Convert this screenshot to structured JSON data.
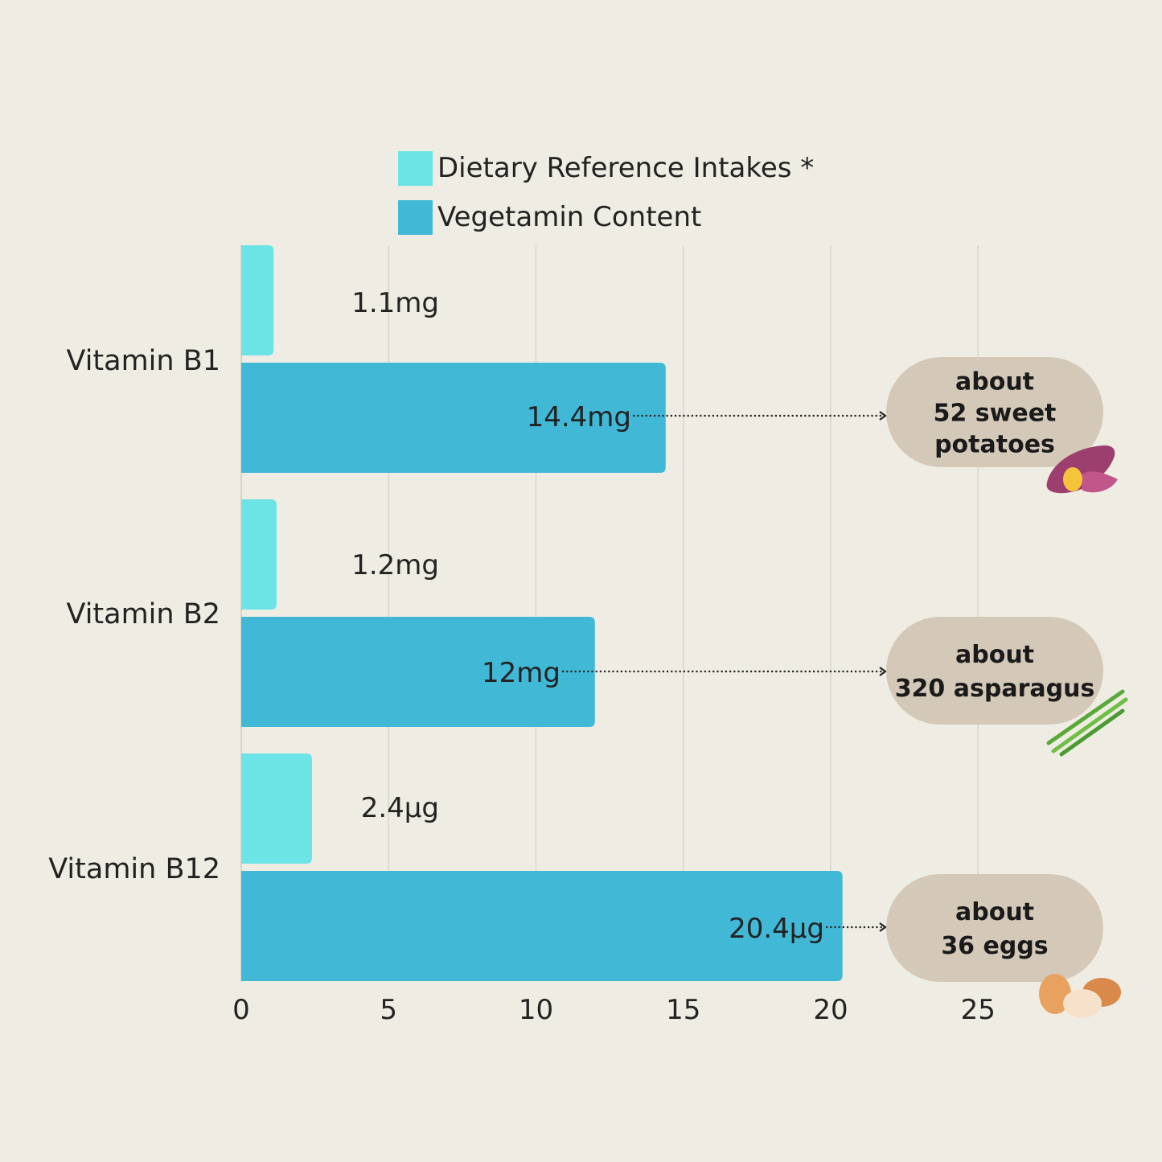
{
  "chart_data": {
    "type": "bar",
    "orientation": "horizontal",
    "categories": [
      "Vitamin B1",
      "Vitamin B2",
      "Vitamin B12"
    ],
    "series": [
      {
        "name": "Dietary Reference Intakes *",
        "values": [
          1.1,
          1.2,
          2.4
        ],
        "labels": [
          "1.1mg",
          "1.2mg",
          "2.4μg"
        ],
        "color": "#6ce4e6"
      },
      {
        "name": "Vegetamin Content",
        "values": [
          14.4,
          12,
          20.4
        ],
        "labels": [
          "14.4mg",
          "12mg",
          "20.4μg"
        ],
        "color": "#42b8d7"
      }
    ],
    "xlim": [
      0,
      25
    ],
    "xticks": [
      "0",
      "5",
      "10",
      "15",
      "20",
      "25"
    ],
    "grid": true,
    "legend_position": "top-center",
    "annotations": [
      {
        "lines": [
          "about",
          "52 sweet",
          "potatoes"
        ],
        "icon": "sweet-potato-icon"
      },
      {
        "lines": [
          "about",
          "320 asparagus"
        ],
        "icon": "asparagus-icon"
      },
      {
        "lines": [
          "about",
          "36 eggs"
        ],
        "icon": "eggs-icon"
      }
    ],
    "annotation_color": "#d4c9b8",
    "background": "#efede3"
  }
}
